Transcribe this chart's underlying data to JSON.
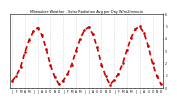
{
  "title": "Milwaukee Weather - Solar Radiation Avg per Day W/m2/minute",
  "line_color": "#cc0000",
  "bg_color": "#ffffff",
  "plot_bg": "#ffffff",
  "grid_color": "#bbbbbb",
  "y_min": 0,
  "y_max": 600,
  "y_right_labels": [
    "0",
    "1",
    "2",
    "3",
    "4",
    "5",
    "6"
  ],
  "x_labels": [
    "J",
    "'",
    "1",
    "",
    "7",
    "7",
    "",
    "S",
    "E",
    "E",
    "L",
    "T",
    "",
    "E",
    "E",
    "L",
    "T",
    "",
    "L",
    "",
    "E",
    "E",
    "S",
    "T",
    "",
    "L",
    "",
    "E",
    "S"
  ],
  "values": [
    55,
    100,
    170,
    290,
    390,
    460,
    490,
    430,
    320,
    185,
    90,
    30,
    60,
    110,
    190,
    300,
    400,
    470,
    495,
    435,
    330,
    190,
    95,
    25,
    65,
    115,
    200,
    310,
    410,
    480,
    500,
    445,
    340,
    200,
    100,
    30
  ]
}
